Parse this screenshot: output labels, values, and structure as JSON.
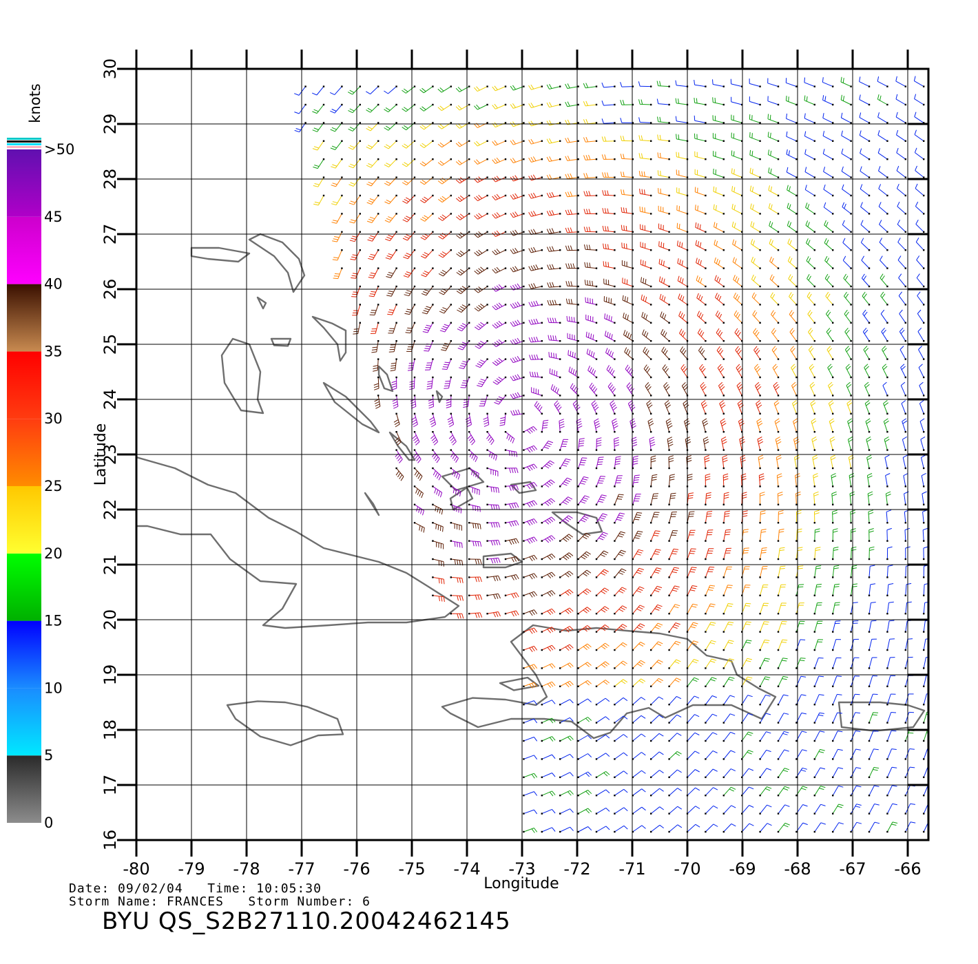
{
  "map": {
    "lon_ticks": [
      "-80",
      "-79",
      "-78",
      "-77",
      "-76",
      "-75",
      "-74",
      "-73",
      "-72",
      "-71",
      "-70",
      "-69",
      "-68",
      "-67",
      "-66"
    ],
    "lat_ticks": [
      "16",
      "17",
      "18",
      "19",
      "20",
      "21",
      "22",
      "23",
      "24",
      "25",
      "26",
      "27",
      "28",
      "29",
      "30"
    ],
    "lon_range": [
      -80,
      -66
    ],
    "lat_range": [
      16,
      30
    ],
    "x_label": "Longitude",
    "y_label": "Latitude",
    "grid": true,
    "coastline_color": "#6e6e6e",
    "storm_center": {
      "lon": -73.0,
      "lat": 23.6
    }
  },
  "legend": {
    "title": "knots",
    "labels": [
      ">50",
      "45",
      "40",
      "35",
      "30",
      "25",
      "20",
      "15",
      "10",
      "5",
      "0"
    ],
    "bands": [
      {
        "from": 0,
        "to": 5,
        "colors": [
          "#8c8c8c",
          "#2a2a2a"
        ]
      },
      {
        "from": 5,
        "to": 10,
        "colors": [
          "#00e8ff",
          "#1a8cff"
        ]
      },
      {
        "from": 10,
        "to": 15,
        "colors": [
          "#1a8cff",
          "#0000ff"
        ]
      },
      {
        "from": 15,
        "to": 20,
        "colors": [
          "#00b000",
          "#00ff00"
        ]
      },
      {
        "from": 20,
        "to": 25,
        "colors": [
          "#ffff30",
          "#ffc800"
        ]
      },
      {
        "from": 25,
        "to": 30,
        "colors": [
          "#ff8c00",
          "#ff3c10"
        ]
      },
      {
        "from": 30,
        "to": 35,
        "colors": [
          "#ff3c10",
          "#ff0000"
        ]
      },
      {
        "from": 35,
        "to": 40,
        "colors": [
          "#c88a50",
          "#3a1000"
        ]
      },
      {
        "from": 40,
        "to": 45,
        "colors": [
          "#ff00ff",
          "#cc00cc"
        ]
      },
      {
        "from": 45,
        "to": 50,
        "colors": [
          "#b000c8",
          "#6010b0"
        ]
      }
    ]
  },
  "info": {
    "date_line": "Date: 09/02/04   Time: 10:05:30",
    "storm_line": "Storm Name: FRANCES   Storm Number: 6",
    "title": "BYU QS_S2B27110.20042462145"
  },
  "speed_colors": {
    "blue": "#0022ee",
    "green": "#10a010",
    "yellow": "#f0d000",
    "orange": "#ff8000",
    "red": "#e02000",
    "brown": "#5a1a00",
    "purple": "#9000c0"
  }
}
